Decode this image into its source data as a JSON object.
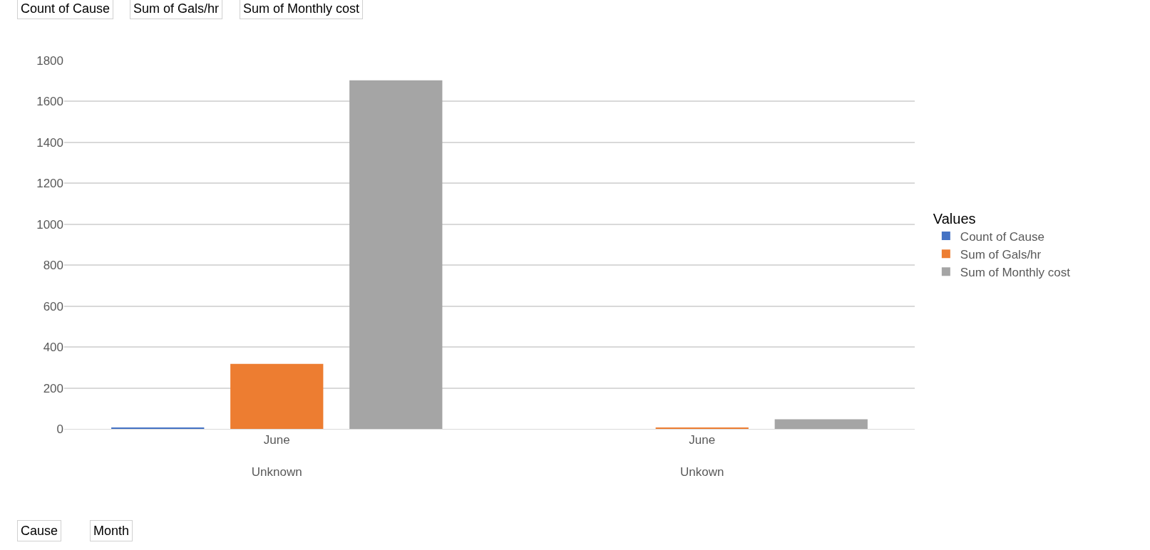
{
  "chart_data": {
    "type": "bar",
    "categories": [
      "June\nUnknown",
      "June\nUnkown"
    ],
    "series": [
      {
        "name": "Count of Cause",
        "color": "#4472c4",
        "values": [
          4,
          0
        ]
      },
      {
        "name": "Sum of Gals/hr",
        "color": "#ed7d31",
        "values": [
          318,
          5
        ]
      },
      {
        "name": "Sum of Monthly cost",
        "color": "#a5a5a5",
        "values": [
          1703,
          47
        ]
      }
    ],
    "ylim": [
      0,
      1800
    ],
    "yticks": [
      0,
      200,
      400,
      600,
      800,
      1000,
      1200,
      1400,
      1600,
      1800
    ],
    "grid": "y",
    "legend": "right",
    "legend_title": "Values",
    "annotations": [
      "Count of Cause",
      "Sum of Gals/hr",
      "Sum of Monthly cost",
      "Cause",
      "Month"
    ]
  }
}
